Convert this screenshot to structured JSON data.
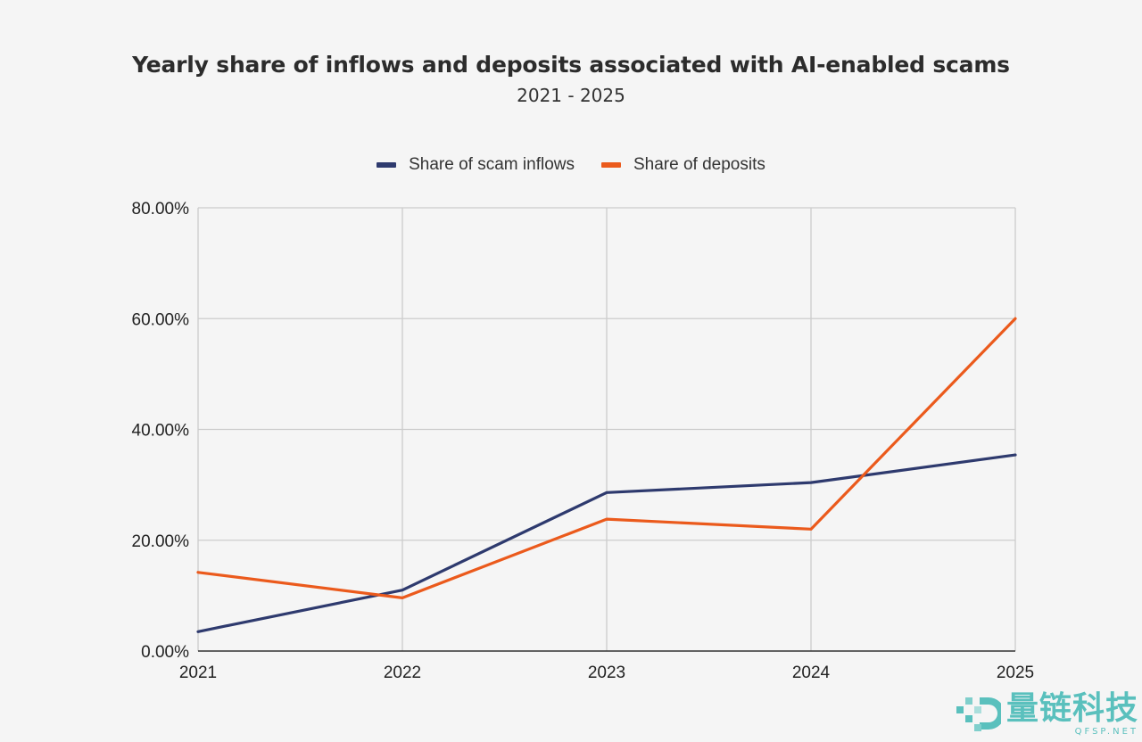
{
  "chart_data": {
    "type": "line",
    "title": "Yearly share of inflows and deposits associated with AI-enabled scams",
    "subtitle": "2021 - 2025",
    "x": [
      "2021",
      "2022",
      "2023",
      "2024",
      "2025"
    ],
    "series": [
      {
        "name": "Share of scam inflows",
        "color": "#2e3a6e",
        "values": [
          3.5,
          11.0,
          28.6,
          30.4,
          35.4
        ]
      },
      {
        "name": "Share of deposits",
        "color": "#eb5a1c",
        "values": [
          14.2,
          9.6,
          23.8,
          22.0,
          60.0
        ]
      }
    ],
    "ylim": [
      0,
      80
    ],
    "yticks": [
      0,
      20,
      40,
      60,
      80
    ],
    "ytick_labels": [
      "0.00%",
      "20.00%",
      "40.00%",
      "60.00%",
      "80.00%"
    ],
    "grid": true,
    "legend": "top-center",
    "xlabel": "",
    "ylabel": ""
  },
  "watermark": {
    "text": "量链科技",
    "subtext": "QFSP.NET"
  }
}
